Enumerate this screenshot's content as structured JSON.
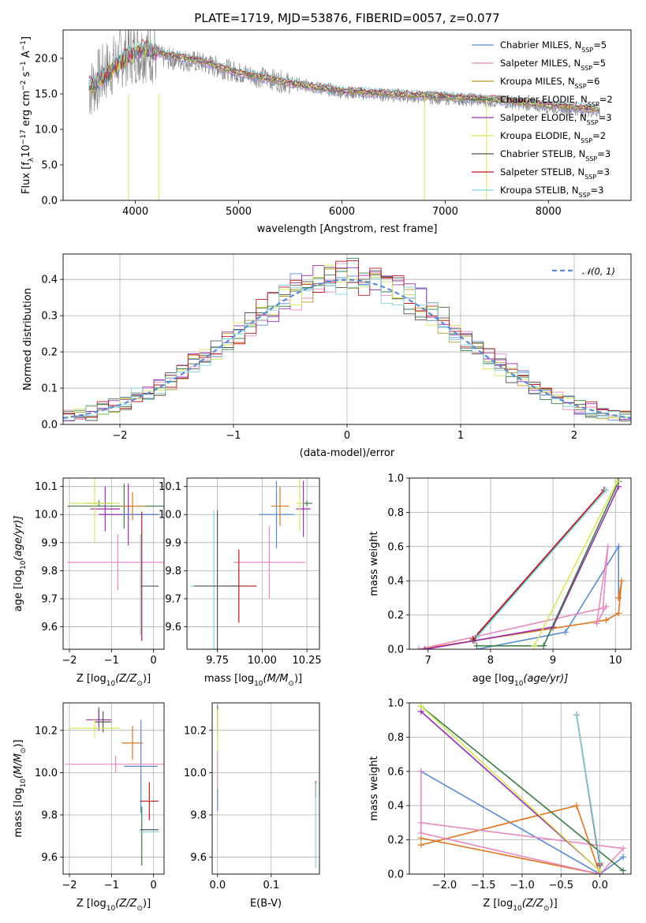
{
  "figure": {
    "title": "PLATE=1719, MJD=53876, FIBERID=0057, z=0.077"
  },
  "legend": {
    "entries": [
      {
        "label": "Chabrier MILES, N",
        "sub": "SSP",
        "suffix": "=5",
        "color": "#5b8bd6"
      },
      {
        "label": "Salpeter MILES, N",
        "sub": "SSP",
        "suffix": "=5",
        "color": "#e98ac0"
      },
      {
        "label": "Kroupa MILES, N",
        "sub": "SSP",
        "suffix": "=6",
        "color": "#b89a20"
      },
      {
        "label": "Chabrier ELODIE, N",
        "sub": "SSP",
        "suffix": "=2",
        "color": "#3a7d44"
      },
      {
        "label": "Salpeter ELODIE, N",
        "sub": "SSP",
        "suffix": "=3",
        "color": "#9a2fb0"
      },
      {
        "label": "Kroupa ELODIE, N",
        "sub": "SSP",
        "suffix": "=2",
        "color": "#d8e85a"
      },
      {
        "label": "Chabrier STELIB, N",
        "sub": "SSP",
        "suffix": "=3",
        "color": "#555555"
      },
      {
        "label": "Salpeter STELIB, N",
        "sub": "SSP",
        "suffix": "=3",
        "color": "#c0181e"
      },
      {
        "label": "Kroupa STELIB, N",
        "sub": "SSP",
        "suffix": "=3",
        "color": "#7fd4de"
      }
    ],
    "normal_label": "𝒩(0, 1)"
  },
  "chart_data": [
    {
      "id": "spectrum",
      "type": "line",
      "xlabel": "wavelength [Angstrom, rest frame]",
      "ylabel": "Flux [f",
      "ylabel_parts": [
        "Flux [f",
        "λ",
        "10",
        "−17",
        " erg cm",
        "−2",
        " s",
        "−1",
        " A",
        "−1",
        "]"
      ],
      "xlim": [
        3300,
        8800
      ],
      "ylim": [
        0,
        24
      ],
      "xticks": [
        4000,
        5000,
        6000,
        7000,
        8000
      ],
      "yticks": [
        0,
        5,
        10,
        15,
        20
      ],
      "continuum": {
        "x": [
          3550,
          3700,
          3900,
          4100,
          4300,
          4600,
          5000,
          5500,
          6000,
          6500,
          7000,
          7500,
          8000,
          8500
        ],
        "y": [
          15.5,
          18.0,
          20.5,
          21.0,
          20.0,
          19.5,
          18.0,
          16.5,
          15.3,
          14.8,
          14.4,
          14.0,
          13.2,
          12.5
        ]
      },
      "models": {
        "x": [
          3550,
          3700,
          3900,
          4100,
          4300,
          4600,
          5000,
          5500,
          6000,
          6500,
          7000,
          7500,
          8000,
          8500
        ],
        "y": [
          16.0,
          17.5,
          20.0,
          21.5,
          20.5,
          19.8,
          18.0,
          16.5,
          15.4,
          15.0,
          14.6,
          14.2,
          13.4,
          12.8
        ]
      },
      "deep_lines": [
        {
          "x": 3934,
          "ymin": 0.0
        },
        {
          "x": 4226,
          "ymin": 0.0
        },
        {
          "x": 6800,
          "ymin": 0.0
        },
        {
          "x": 7400,
          "ymin": 0.0
        }
      ]
    },
    {
      "id": "residuals",
      "type": "line",
      "xlabel": "(data-model)/error",
      "ylabel": "Normed distribution",
      "xlim": [
        -2.5,
        2.5
      ],
      "ylim": [
        0,
        0.47
      ],
      "xticks": [
        -2,
        -1,
        0,
        1,
        2
      ],
      "yticks": [
        0.0,
        0.1,
        0.2,
        0.3,
        0.4
      ],
      "grid": true,
      "normal": {
        "mu": 0,
        "sigma": 1
      },
      "bin_width": 0.1
    },
    {
      "id": "age_vs_Z",
      "type": "scatter",
      "xlabel": "Z [log",
      "xlabel_parts": [
        "Z [log",
        "10",
        "(Z/Z",
        "⊙",
        ")]"
      ],
      "ylabel_parts": [
        "age  [log",
        "10",
        "(age/yr)]"
      ],
      "xlim": [
        -2.15,
        0.25
      ],
      "ylim": [
        9.52,
        10.13
      ],
      "xticks": [
        -2,
        -1,
        0
      ],
      "yticks": [
        9.6,
        9.7,
        9.8,
        9.9,
        10.0,
        10.1
      ],
      "grid": true,
      "points": [
        {
          "x": -0.7,
          "y": 10.03,
          "xerr": 1.35,
          "yerr": 0.08,
          "color": "#3a7d44"
        },
        {
          "x": -1.3,
          "y": 10.04,
          "xerr": 0.3,
          "yerr": 0.01,
          "color": "#3a7d44"
        },
        {
          "x": -1.15,
          "y": 10.02,
          "xerr": 0.35,
          "yerr": 0.08,
          "color": "#9a2fb0"
        },
        {
          "x": -1.4,
          "y": 10.04,
          "xerr": 0.6,
          "yerr": 0.14,
          "color": "#d8e85a"
        },
        {
          "x": -0.5,
          "y": 10.03,
          "xerr": 0.3,
          "yerr": 0.05,
          "color": "#e0761f"
        },
        {
          "x": -0.6,
          "y": 10.0,
          "xerr": 0.7,
          "yerr": 0.11,
          "color": "#9a2fb0"
        },
        {
          "x": -0.3,
          "y": 10.0,
          "xerr": 0.45,
          "yerr": 0.0,
          "color": "#5b8bd6"
        },
        {
          "x": -0.85,
          "y": 9.83,
          "xerr": 1.2,
          "yerr": 0.1,
          "color": "#e98ac0"
        },
        {
          "x": -0.1,
          "y": 9.745,
          "xerr": 0.22,
          "yerr": 0.0,
          "color": "#555555"
        },
        {
          "x": -0.28,
          "y": 9.78,
          "xerr": 0.0,
          "yerr": 0.23,
          "color": "#c0181e"
        },
        {
          "x": -0.31,
          "y": 9.75,
          "xerr": 0.0,
          "yerr": 0.18,
          "color": "#7fd4de"
        }
      ]
    },
    {
      "id": "age_vs_mass",
      "type": "scatter",
      "xlabel_parts": [
        "mass [log",
        "10",
        "(M/M",
        "⊙",
        ")]"
      ],
      "xlim": [
        9.58,
        10.32
      ],
      "ylim": [
        9.52,
        10.13
      ],
      "xticks": [
        9.75,
        10.0,
        10.25
      ],
      "xticklabels": [
        "9.75",
        "10.00",
        "10.25"
      ],
      "yticks": [
        9.6,
        9.7,
        9.8,
        9.9,
        10.0,
        10.1
      ],
      "grid": true,
      "points": [
        {
          "x": 10.08,
          "y": 10.0,
          "xerr": 0.1,
          "yerr": 0.12,
          "color": "#5b8bd6"
        },
        {
          "x": 10.1,
          "y": 10.03,
          "xerr": 0.05,
          "yerr": 0.07,
          "color": "#e0761f"
        },
        {
          "x": 10.23,
          "y": 10.02,
          "xerr": 0.04,
          "yerr": 0.1,
          "color": "#9a2fb0"
        },
        {
          "x": 10.25,
          "y": 10.04,
          "xerr": 0.03,
          "yerr": 0.01,
          "color": "#3a7d44"
        },
        {
          "x": 10.21,
          "y": 10.04,
          "xerr": 0.02,
          "yerr": 0.1,
          "color": "#d8e85a"
        },
        {
          "x": 10.04,
          "y": 9.83,
          "xerr": 0.2,
          "yerr": 0.13,
          "color": "#e98ac0"
        },
        {
          "x": 9.73,
          "y": 9.745,
          "xerr": 0.13,
          "yerr": 0.27,
          "color": "#7fd4de"
        },
        {
          "x": 9.87,
          "y": 9.745,
          "xerr": 0.1,
          "yerr": 0.13,
          "color": "#c0181e"
        },
        {
          "x": 9.75,
          "y": 9.745,
          "xerr": 0.13,
          "yerr": 0.27,
          "color": "#555555"
        }
      ]
    },
    {
      "id": "weight_vs_age",
      "type": "line",
      "xlabel_parts": [
        "age  [log",
        "10",
        "(age/yr)]"
      ],
      "ylabel": "mass weight",
      "xlim": [
        6.7,
        10.25
      ],
      "ylim": [
        0,
        1
      ],
      "xticks": [
        7,
        8,
        9,
        10
      ],
      "yticks": [
        0.0,
        0.2,
        0.4,
        0.6,
        0.8,
        1.0
      ],
      "grid": true,
      "series": [
        {
          "color": "#5b8bd6",
          "x": [
            7.78,
            9.2,
            10.05,
            10.05
          ],
          "y": [
            0.0,
            0.1,
            0.6,
            0.3
          ]
        },
        {
          "color": "#e0761f",
          "x": [
            6.85,
            9.85,
            10.05,
            10.1,
            10.05
          ],
          "y": [
            0.0,
            0.17,
            0.21,
            0.4,
            0.3
          ]
        },
        {
          "color": "#e98ac0",
          "x": [
            6.85,
            9.8,
            9.88,
            9.7,
            9.85
          ],
          "y": [
            0.0,
            0.24,
            0.6,
            0.15,
            0.25
          ]
        },
        {
          "color": "#9a2fb0",
          "x": [
            6.95,
            7.75,
            9.0,
            10.05
          ],
          "y": [
            0.0,
            0.05,
            0.13,
            0.95
          ]
        },
        {
          "color": "#3a7d44",
          "x": [
            7.78,
            8.85,
            10.05
          ],
          "y": [
            0.02,
            0.02,
            0.98
          ]
        },
        {
          "color": "#d8e85a",
          "x": [
            8.7,
            10.03
          ],
          "y": [
            0.02,
            0.98
          ]
        },
        {
          "color": "#555555",
          "x": [
            7.72,
            9.82
          ],
          "y": [
            0.05,
            0.93
          ]
        },
        {
          "color": "#c0181e",
          "x": [
            7.72,
            9.82
          ],
          "y": [
            0.06,
            0.93
          ]
        },
        {
          "color": "#7fd4de",
          "x": [
            7.78,
            9.85
          ],
          "y": [
            0.07,
            0.93
          ]
        }
      ]
    },
    {
      "id": "mass_vs_Z",
      "type": "scatter",
      "xlabel_parts": [
        "Z [log",
        "10",
        "(Z/Z",
        "⊙",
        ")]"
      ],
      "ylabel_parts": [
        "mass [log",
        "10",
        "(M/M",
        "⊙",
        ")]"
      ],
      "xlim": [
        -2.15,
        0.25
      ],
      "ylim": [
        9.52,
        10.33
      ],
      "xticks": [
        -2,
        -1,
        0
      ],
      "yticks": [
        9.6,
        9.8,
        10.0,
        10.2
      ],
      "grid": true,
      "points": [
        {
          "x": -1.3,
          "y": 10.28,
          "xerr": 0.0,
          "yerr": 0.03,
          "color": "#3a7d44"
        },
        {
          "x": -1.3,
          "y": 10.25,
          "xerr": 0.3,
          "yerr": 0.05,
          "color": "#9a2fb0"
        },
        {
          "x": -1.2,
          "y": 10.24,
          "xerr": 0.2,
          "yerr": 0.05,
          "color": "#555555"
        },
        {
          "x": -1.4,
          "y": 10.21,
          "xerr": 0.6,
          "yerr": 0.05,
          "color": "#d8e85a"
        },
        {
          "x": -0.5,
          "y": 10.14,
          "xerr": 0.25,
          "yerr": 0.08,
          "color": "#e0761f"
        },
        {
          "x": -0.3,
          "y": 10.03,
          "xerr": 0.4,
          "yerr": 0.22,
          "color": "#5b8bd6"
        },
        {
          "x": -0.9,
          "y": 10.04,
          "xerr": 1.2,
          "yerr": 0.04,
          "color": "#e98ac0"
        },
        {
          "x": -0.1,
          "y": 9.865,
          "xerr": 0.22,
          "yerr": 0.09,
          "color": "#c0181e"
        },
        {
          "x": -0.1,
          "y": 9.73,
          "xerr": 0.22,
          "yerr": 0.0,
          "color": "#555555"
        },
        {
          "x": -0.28,
          "y": 9.7,
          "xerr": 0.0,
          "yerr": 0.14,
          "color": "#3a7d44"
        },
        {
          "x": -0.1,
          "y": 9.72,
          "xerr": 0.22,
          "yerr": 0.0,
          "color": "#7fd4de"
        }
      ]
    },
    {
      "id": "mass_vs_ebv",
      "type": "scatter",
      "xlabel": "E(B-V)",
      "xlim": [
        -0.01,
        0.19
      ],
      "ylim": [
        9.52,
        10.33
      ],
      "xticks": [
        0.0,
        0.1
      ],
      "xticklabels": [
        "0.0",
        "0.1"
      ],
      "yticks": [
        9.6,
        9.8,
        10.0,
        10.2
      ],
      "grid": true,
      "points": [
        {
          "x": 0.0,
          "y": 10.25,
          "xerr": 0.0,
          "yerr": 0.07,
          "color": "#3a7d44"
        },
        {
          "x": 0.0,
          "y": 10.2,
          "xerr": 0.0,
          "yerr": 0.1,
          "color": "#d8e85a"
        },
        {
          "x": 0.0,
          "y": 10.0,
          "xerr": 0.0,
          "yerr": 0.1,
          "color": "#e98ac0"
        },
        {
          "x": 0.0,
          "y": 9.87,
          "xerr": 0.0,
          "yerr": 0.05,
          "color": "#5b8bd6"
        },
        {
          "x": 0.183,
          "y": 9.92,
          "xerr": 0.0,
          "yerr": 0.04,
          "color": "#c0181e"
        },
        {
          "x": 0.183,
          "y": 9.75,
          "xerr": 0.0,
          "yerr": 0.2,
          "color": "#7fd4de"
        }
      ]
    },
    {
      "id": "weight_vs_Z",
      "type": "line",
      "xlabel_parts": [
        "Z [log",
        "10",
        "(Z/Z",
        "⊙",
        ")]"
      ],
      "ylabel": "mass weight",
      "xlim": [
        -2.45,
        0.4
      ],
      "ylim": [
        0,
        1
      ],
      "xticks": [
        -2.0,
        -1.5,
        -1.0,
        -0.5,
        0.0
      ],
      "xticklabels": [
        "−2.0",
        "−1.5",
        "−1.0",
        "−0.5",
        "0.0"
      ],
      "yticks": [
        0.0,
        0.2,
        0.4,
        0.6,
        0.8,
        1.0
      ],
      "grid": true,
      "series": [
        {
          "color": "#5b8bd6",
          "x": [
            -2.3,
            0.0,
            0.3
          ],
          "y": [
            0.6,
            0.0,
            0.1
          ]
        },
        {
          "color": "#e0761f",
          "x": [
            -2.3,
            -0.3,
            0.0,
            -2.3
          ],
          "y": [
            0.17,
            0.4,
            0.0,
            0.21
          ]
        },
        {
          "color": "#e98ac0",
          "x": [
            -2.3,
            -2.3,
            0.0,
            0.3,
            -2.3
          ],
          "y": [
            0.6,
            0.24,
            0.0,
            0.15,
            0.3
          ]
        },
        {
          "color": "#9a2fb0",
          "x": [
            -2.3,
            0.0
          ],
          "y": [
            0.95,
            0.02
          ]
        },
        {
          "color": "#3a7d44",
          "x": [
            -2.3,
            0.3
          ],
          "y": [
            0.98,
            0.02
          ]
        },
        {
          "color": "#d8e85a",
          "x": [
            -2.3,
            0.0
          ],
          "y": [
            0.98,
            0.02
          ]
        },
        {
          "color": "#555555",
          "x": [
            -0.3,
            0.0
          ],
          "y": [
            0.93,
            0.05
          ]
        },
        {
          "color": "#c0181e",
          "x": [
            -0.3,
            0.0
          ],
          "y": [
            0.93,
            0.06
          ]
        },
        {
          "color": "#7fd4de",
          "x": [
            -0.3,
            0.0
          ],
          "y": [
            0.93,
            0.07
          ]
        }
      ]
    }
  ]
}
